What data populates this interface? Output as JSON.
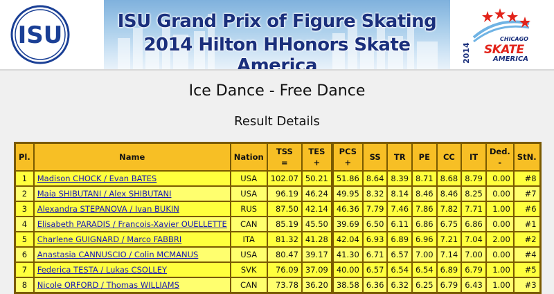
{
  "banner": {
    "line1": "ISU Grand Prix of Figure Skating",
    "line2": "2014 Hilton HHonors Skate America",
    "isu_logo_text": "ISU",
    "sa_logo": {
      "year": "2014",
      "city": "CHICAGO",
      "skate": "SKATE",
      "america": "AMERICA"
    }
  },
  "page": {
    "title": "Ice Dance - Free Dance",
    "subtitle": "Result Details"
  },
  "table": {
    "headers": {
      "pl": "Pl.",
      "name": "Name",
      "nation": "Nation",
      "tss": "TSS",
      "tss_sym": "=",
      "tes": "TES",
      "tes_sym": "+",
      "pcs": "PCS",
      "pcs_sym": "+",
      "ss": "SS",
      "tr": "TR",
      "pe": "PE",
      "cc": "CC",
      "it": "IT",
      "ded": "Ded.",
      "ded_sym": "-",
      "stn": "StN."
    },
    "rows": [
      {
        "pl": "1",
        "name": "Madison CHOCK / Evan BATES",
        "nation": "USA",
        "tss": "102.07",
        "tes": "50.21",
        "pcs": "51.86",
        "ss": "8.64",
        "tr": "8.39",
        "pe": "8.71",
        "cc": "8.68",
        "it": "8.79",
        "ded": "0.00",
        "stn": "#8"
      },
      {
        "pl": "2",
        "name": "Maia SHIBUTANI / Alex SHIBUTANI",
        "nation": "USA",
        "tss": "96.19",
        "tes": "46.24",
        "pcs": "49.95",
        "ss": "8.32",
        "tr": "8.14",
        "pe": "8.46",
        "cc": "8.46",
        "it": "8.25",
        "ded": "0.00",
        "stn": "#7"
      },
      {
        "pl": "3",
        "name": "Alexandra STEPANOVA / Ivan BUKIN",
        "nation": "RUS",
        "tss": "87.50",
        "tes": "42.14",
        "pcs": "46.36",
        "ss": "7.79",
        "tr": "7.46",
        "pe": "7.86",
        "cc": "7.82",
        "it": "7.71",
        "ded": "1.00",
        "stn": "#6"
      },
      {
        "pl": "4",
        "name": "Elisabeth PARADIS / Francois-Xavier OUELLETTE",
        "nation": "CAN",
        "tss": "85.19",
        "tes": "45.50",
        "pcs": "39.69",
        "ss": "6.50",
        "tr": "6.11",
        "pe": "6.86",
        "cc": "6.75",
        "it": "6.86",
        "ded": "0.00",
        "stn": "#1"
      },
      {
        "pl": "5",
        "name": "Charlene GUIGNARD / Marco FABBRI",
        "nation": "ITA",
        "tss": "81.32",
        "tes": "41.28",
        "pcs": "42.04",
        "ss": "6.93",
        "tr": "6.89",
        "pe": "6.96",
        "cc": "7.21",
        "it": "7.04",
        "ded": "2.00",
        "stn": "#2"
      },
      {
        "pl": "6",
        "name": "Anastasia CANNUSCIO / Colin MCMANUS",
        "nation": "USA",
        "tss": "80.47",
        "tes": "39.17",
        "pcs": "41.30",
        "ss": "6.71",
        "tr": "6.57",
        "pe": "7.00",
        "cc": "7.14",
        "it": "7.00",
        "ded": "0.00",
        "stn": "#4"
      },
      {
        "pl": "7",
        "name": "Federica TESTA / Lukas CSOLLEY",
        "nation": "SVK",
        "tss": "76.09",
        "tes": "37.09",
        "pcs": "40.00",
        "ss": "6.57",
        "tr": "6.54",
        "pe": "6.54",
        "cc": "6.89",
        "it": "6.79",
        "ded": "1.00",
        "stn": "#5"
      },
      {
        "pl": "8",
        "name": "Nicole ORFORD / Thomas WILLIAMS",
        "nation": "CAN",
        "tss": "73.78",
        "tes": "36.20",
        "pcs": "38.58",
        "ss": "6.36",
        "tr": "6.32",
        "pe": "6.25",
        "cc": "6.79",
        "it": "6.43",
        "ded": "1.00",
        "stn": "#3"
      }
    ]
  },
  "colors": {
    "header_bg": "#f7bf25",
    "row_bg": "#ffff3d",
    "border": "#7a5a00",
    "link": "#1a1ab0",
    "banner_text": "#1a2f7c"
  }
}
